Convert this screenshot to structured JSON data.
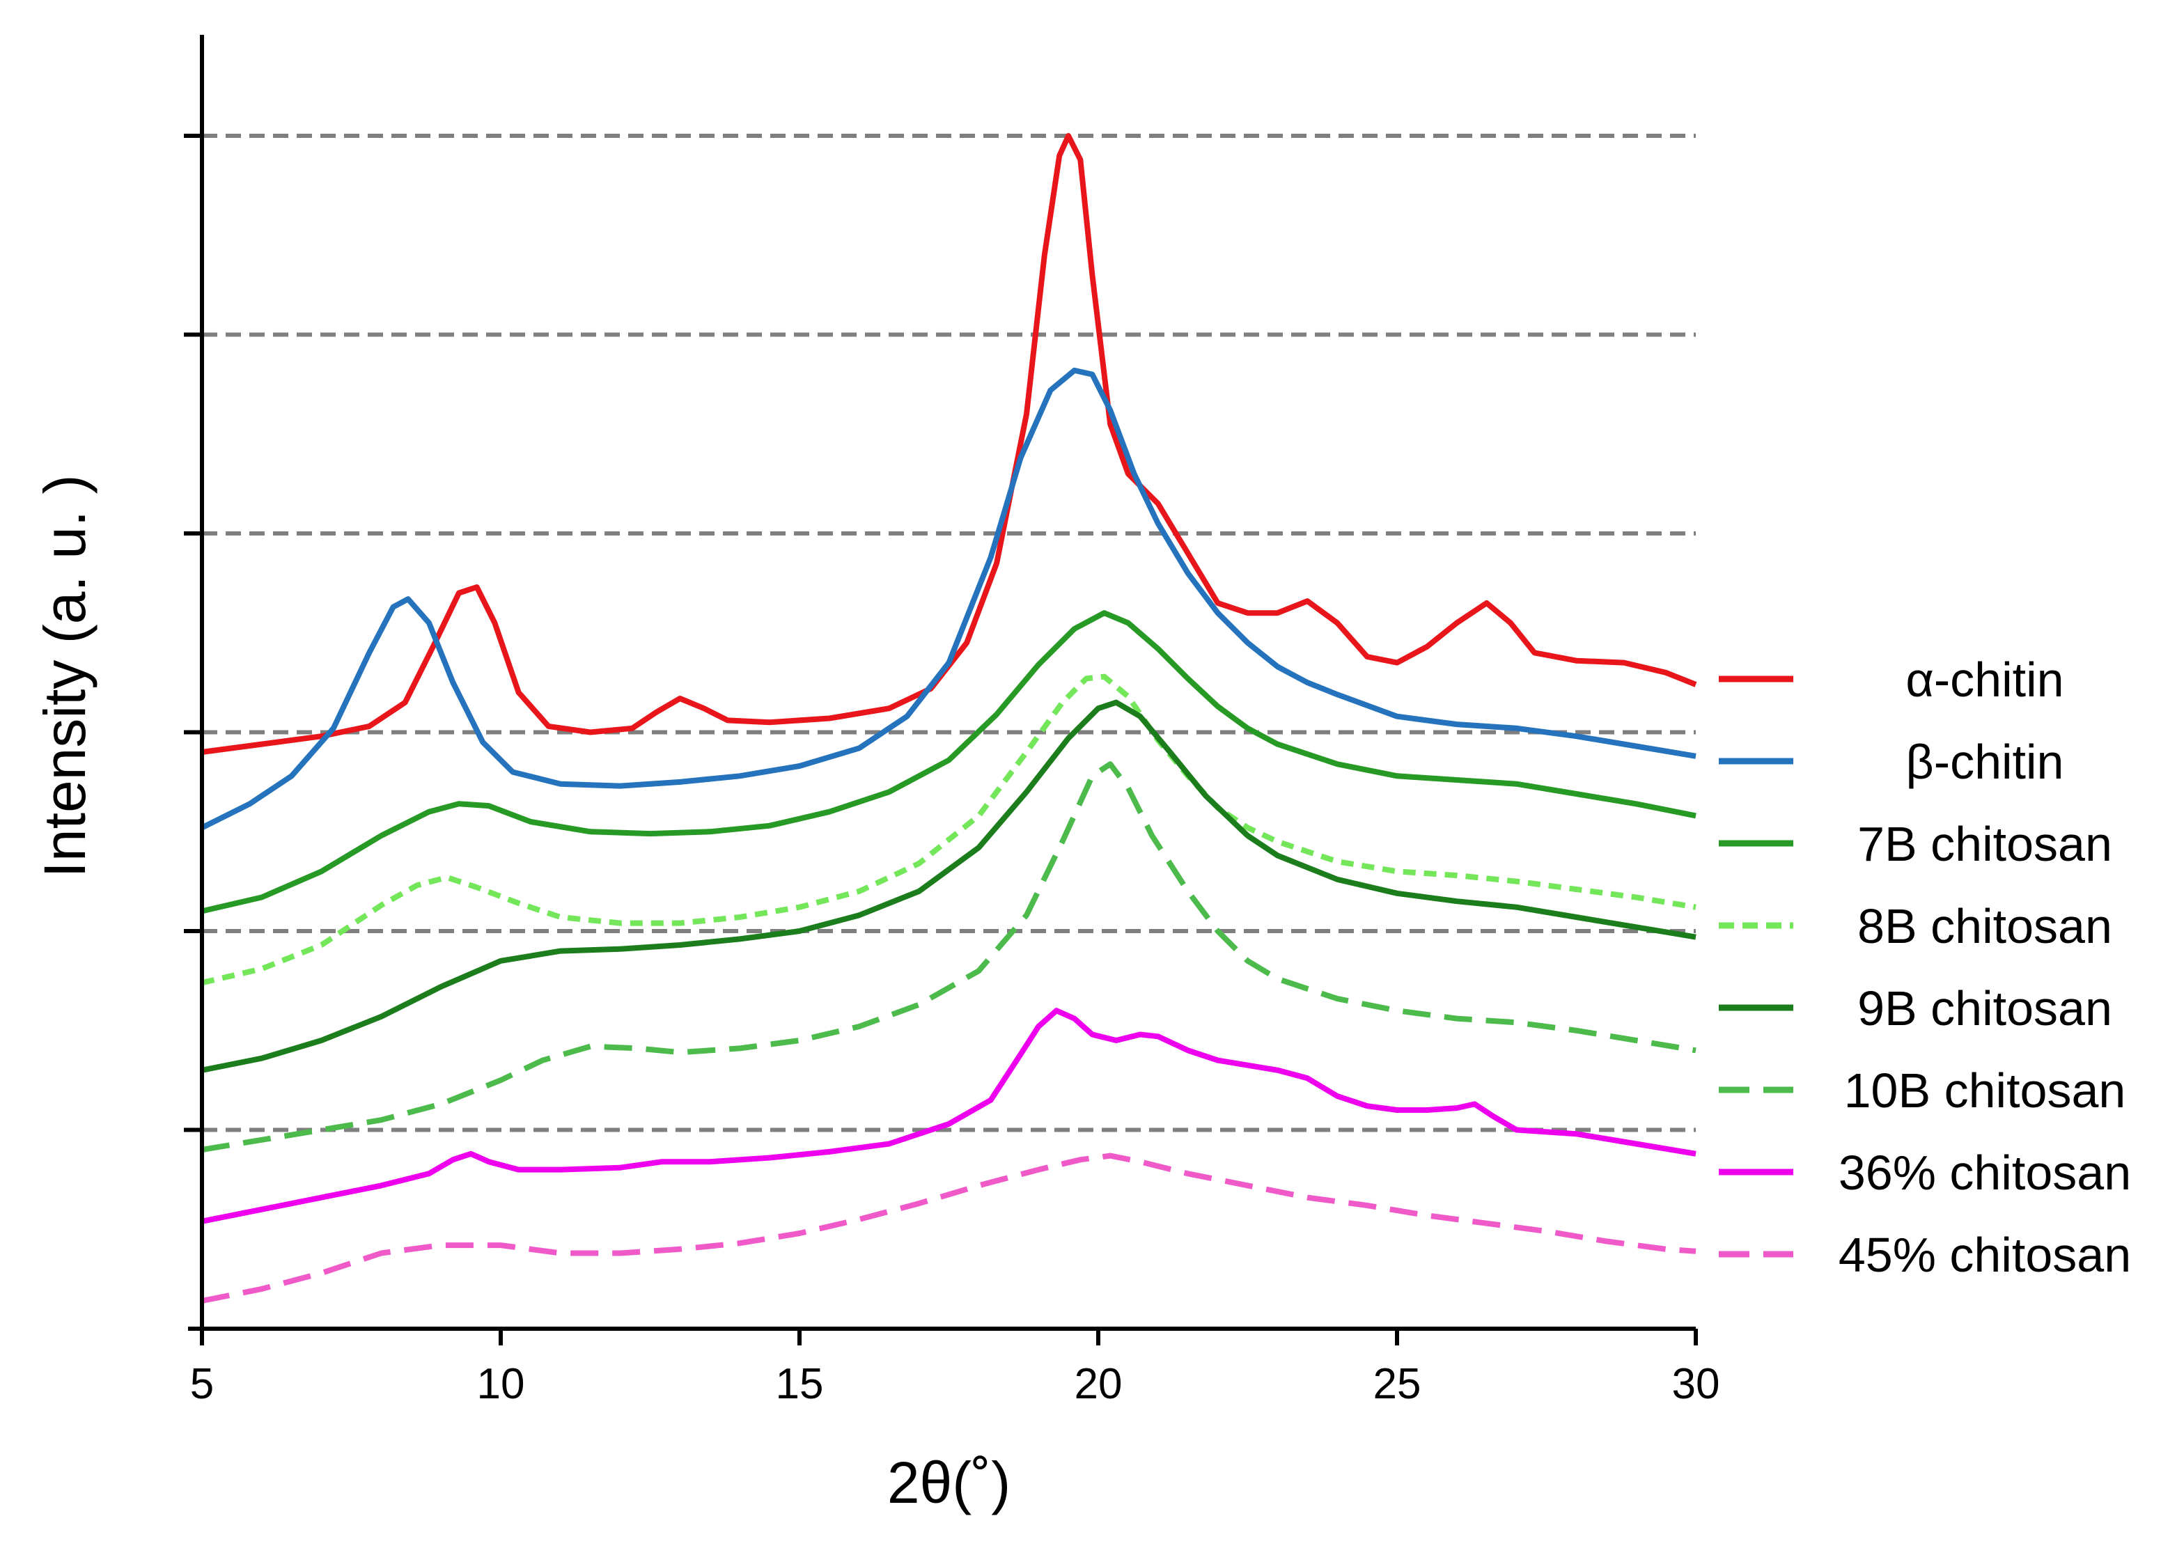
{
  "chart_data": {
    "type": "line",
    "title": "",
    "xlabel": "2θ(˚)",
    "ylabel": "Intensity (a. u. )",
    "xlim": [
      5,
      30
    ],
    "ylim": [
      0,
      6
    ],
    "x_ticks": [
      5,
      10,
      15,
      20,
      25,
      30
    ],
    "x_tick_labels": [
      "5",
      "10",
      "15",
      "20",
      "25",
      "30"
    ],
    "y_ticks": [
      0,
      1,
      2,
      3,
      4,
      5,
      6
    ],
    "y_tick_labels": [],
    "gridlines_y": [
      1,
      2,
      3,
      4,
      5,
      6
    ],
    "grid": "horizontal dashed",
    "legend_position": "right",
    "series": [
      {
        "name": "α-chitin",
        "color": "#e8161a",
        "dash": "solid",
        "points": [
          [
            5,
            2.9
          ],
          [
            6,
            2.94
          ],
          [
            7,
            2.98
          ],
          [
            7.8,
            3.03
          ],
          [
            8.4,
            3.15
          ],
          [
            8.9,
            3.45
          ],
          [
            9.3,
            3.7
          ],
          [
            9.6,
            3.73
          ],
          [
            9.9,
            3.55
          ],
          [
            10.3,
            3.2
          ],
          [
            10.8,
            3.03
          ],
          [
            11.5,
            3.0
          ],
          [
            12.2,
            3.02
          ],
          [
            12.6,
            3.1
          ],
          [
            13.0,
            3.17
          ],
          [
            13.4,
            3.12
          ],
          [
            13.8,
            3.06
          ],
          [
            14.5,
            3.05
          ],
          [
            15.5,
            3.07
          ],
          [
            16.5,
            3.12
          ],
          [
            17.2,
            3.22
          ],
          [
            17.8,
            3.45
          ],
          [
            18.3,
            3.85
          ],
          [
            18.8,
            4.6
          ],
          [
            19.1,
            5.4
          ],
          [
            19.35,
            5.9
          ],
          [
            19.5,
            6.0
          ],
          [
            19.7,
            5.88
          ],
          [
            19.9,
            5.3
          ],
          [
            20.2,
            4.55
          ],
          [
            20.5,
            4.3
          ],
          [
            21.0,
            4.15
          ],
          [
            21.5,
            3.9
          ],
          [
            22.0,
            3.65
          ],
          [
            22.5,
            3.6
          ],
          [
            23.0,
            3.6
          ],
          [
            23.5,
            3.66
          ],
          [
            24.0,
            3.55
          ],
          [
            24.5,
            3.38
          ],
          [
            25.0,
            3.35
          ],
          [
            25.5,
            3.43
          ],
          [
            26.0,
            3.55
          ],
          [
            26.5,
            3.65
          ],
          [
            26.9,
            3.55
          ],
          [
            27.3,
            3.4
          ],
          [
            28.0,
            3.36
          ],
          [
            28.8,
            3.35
          ],
          [
            29.5,
            3.3
          ],
          [
            30,
            3.24
          ]
        ]
      },
      {
        "name": "β-chitin",
        "color": "#2473bc",
        "dash": "solid",
        "points": [
          [
            5,
            2.52
          ],
          [
            5.8,
            2.64
          ],
          [
            6.5,
            2.78
          ],
          [
            7.2,
            3.02
          ],
          [
            7.8,
            3.4
          ],
          [
            8.2,
            3.63
          ],
          [
            8.45,
            3.67
          ],
          [
            8.8,
            3.55
          ],
          [
            9.2,
            3.25
          ],
          [
            9.7,
            2.95
          ],
          [
            10.2,
            2.8
          ],
          [
            11.0,
            2.74
          ],
          [
            12.0,
            2.73
          ],
          [
            13.0,
            2.75
          ],
          [
            14.0,
            2.78
          ],
          [
            15.0,
            2.83
          ],
          [
            16.0,
            2.92
          ],
          [
            16.8,
            3.08
          ],
          [
            17.5,
            3.35
          ],
          [
            18.2,
            3.88
          ],
          [
            18.7,
            4.38
          ],
          [
            19.2,
            4.72
          ],
          [
            19.6,
            4.82
          ],
          [
            19.9,
            4.8
          ],
          [
            20.2,
            4.62
          ],
          [
            20.6,
            4.3
          ],
          [
            21.0,
            4.05
          ],
          [
            21.5,
            3.8
          ],
          [
            22.0,
            3.6
          ],
          [
            22.5,
            3.45
          ],
          [
            23.0,
            3.33
          ],
          [
            23.5,
            3.25
          ],
          [
            24.0,
            3.19
          ],
          [
            25.0,
            3.08
          ],
          [
            26.0,
            3.04
          ],
          [
            27.0,
            3.02
          ],
          [
            28.0,
            2.98
          ],
          [
            29.0,
            2.93
          ],
          [
            30,
            2.88
          ]
        ]
      },
      {
        "name": "7B chitosan",
        "color": "#269a24",
        "dash": "solid",
        "points": [
          [
            5,
            2.1
          ],
          [
            6,
            2.17
          ],
          [
            7,
            2.3
          ],
          [
            8,
            2.48
          ],
          [
            8.8,
            2.6
          ],
          [
            9.3,
            2.64
          ],
          [
            9.8,
            2.63
          ],
          [
            10.5,
            2.55
          ],
          [
            11.5,
            2.5
          ],
          [
            12.5,
            2.49
          ],
          [
            13.5,
            2.5
          ],
          [
            14.5,
            2.53
          ],
          [
            15.5,
            2.6
          ],
          [
            16.5,
            2.7
          ],
          [
            17.5,
            2.86
          ],
          [
            18.3,
            3.09
          ],
          [
            19.0,
            3.34
          ],
          [
            19.6,
            3.52
          ],
          [
            20.1,
            3.6
          ],
          [
            20.5,
            3.55
          ],
          [
            21.0,
            3.42
          ],
          [
            21.5,
            3.27
          ],
          [
            22.0,
            3.13
          ],
          [
            22.5,
            3.02
          ],
          [
            23.0,
            2.94
          ],
          [
            24.0,
            2.84
          ],
          [
            25.0,
            2.78
          ],
          [
            26.0,
            2.76
          ],
          [
            27.0,
            2.74
          ],
          [
            28.0,
            2.69
          ],
          [
            29.0,
            2.64
          ],
          [
            30,
            2.58
          ]
        ]
      },
      {
        "name": "8B chitosan",
        "color": "#73e65a",
        "dash": "short",
        "points": [
          [
            5,
            1.74
          ],
          [
            6,
            1.81
          ],
          [
            7,
            1.93
          ],
          [
            8,
            2.13
          ],
          [
            8.6,
            2.23
          ],
          [
            9.1,
            2.27
          ],
          [
            9.6,
            2.22
          ],
          [
            10.3,
            2.14
          ],
          [
            11.0,
            2.07
          ],
          [
            12.0,
            2.04
          ],
          [
            13.0,
            2.04
          ],
          [
            14.0,
            2.07
          ],
          [
            15.0,
            2.12
          ],
          [
            16.0,
            2.2
          ],
          [
            17.0,
            2.34
          ],
          [
            18.0,
            2.58
          ],
          [
            18.8,
            2.9
          ],
          [
            19.4,
            3.15
          ],
          [
            19.8,
            3.27
          ],
          [
            20.1,
            3.28
          ],
          [
            20.5,
            3.18
          ],
          [
            21.0,
            2.96
          ],
          [
            21.5,
            2.78
          ],
          [
            22.0,
            2.62
          ],
          [
            22.5,
            2.52
          ],
          [
            23.0,
            2.45
          ],
          [
            24.0,
            2.35
          ],
          [
            25.0,
            2.3
          ],
          [
            26.0,
            2.28
          ],
          [
            27.0,
            2.25
          ],
          [
            28.0,
            2.21
          ],
          [
            29.0,
            2.17
          ],
          [
            30,
            2.12
          ]
        ]
      },
      {
        "name": "9B chitosan",
        "color": "#1c7d1c",
        "dash": "solid",
        "points": [
          [
            5,
            1.3
          ],
          [
            6,
            1.36
          ],
          [
            7,
            1.45
          ],
          [
            8,
            1.57
          ],
          [
            9,
            1.72
          ],
          [
            10,
            1.85
          ],
          [
            11,
            1.9
          ],
          [
            12,
            1.91
          ],
          [
            13,
            1.93
          ],
          [
            14,
            1.96
          ],
          [
            15,
            2.0
          ],
          [
            16,
            2.08
          ],
          [
            17,
            2.2
          ],
          [
            18,
            2.42
          ],
          [
            18.8,
            2.7
          ],
          [
            19.5,
            2.97
          ],
          [
            20.0,
            3.12
          ],
          [
            20.3,
            3.15
          ],
          [
            20.7,
            3.08
          ],
          [
            21.2,
            2.9
          ],
          [
            21.8,
            2.68
          ],
          [
            22.5,
            2.48
          ],
          [
            23.0,
            2.38
          ],
          [
            24.0,
            2.26
          ],
          [
            25.0,
            2.19
          ],
          [
            26.0,
            2.15
          ],
          [
            27.0,
            2.12
          ],
          [
            28.0,
            2.07
          ],
          [
            29.0,
            2.02
          ],
          [
            30,
            1.97
          ]
        ]
      },
      {
        "name": "10B chitosan",
        "color": "#4cbb4c",
        "dash": "long",
        "points": [
          [
            5,
            0.9
          ],
          [
            6,
            0.95
          ],
          [
            7,
            1.0
          ],
          [
            8,
            1.05
          ],
          [
            9,
            1.13
          ],
          [
            10,
            1.25
          ],
          [
            10.7,
            1.35
          ],
          [
            11.5,
            1.42
          ],
          [
            12.3,
            1.41
          ],
          [
            13,
            1.39
          ],
          [
            14,
            1.41
          ],
          [
            15,
            1.45
          ],
          [
            16,
            1.52
          ],
          [
            17,
            1.63
          ],
          [
            18,
            1.8
          ],
          [
            18.8,
            2.08
          ],
          [
            19.4,
            2.45
          ],
          [
            19.9,
            2.78
          ],
          [
            20.2,
            2.84
          ],
          [
            20.5,
            2.72
          ],
          [
            20.9,
            2.48
          ],
          [
            21.5,
            2.2
          ],
          [
            22.0,
            2.0
          ],
          [
            22.5,
            1.85
          ],
          [
            23.0,
            1.76
          ],
          [
            24.0,
            1.66
          ],
          [
            25.0,
            1.6
          ],
          [
            26.0,
            1.56
          ],
          [
            27.0,
            1.54
          ],
          [
            28.0,
            1.5
          ],
          [
            29.0,
            1.45
          ],
          [
            30,
            1.4
          ]
        ]
      },
      {
        "name": "36% chitosan",
        "color": "#ee00ee",
        "dash": "solid",
        "points": [
          [
            5,
            0.54
          ],
          [
            6,
            0.6
          ],
          [
            7,
            0.66
          ],
          [
            8,
            0.72
          ],
          [
            8.8,
            0.78
          ],
          [
            9.2,
            0.85
          ],
          [
            9.5,
            0.88
          ],
          [
            9.8,
            0.84
          ],
          [
            10.3,
            0.8
          ],
          [
            11,
            0.8
          ],
          [
            12,
            0.81
          ],
          [
            12.7,
            0.84
          ],
          [
            13.5,
            0.84
          ],
          [
            14.5,
            0.86
          ],
          [
            15.5,
            0.89
          ],
          [
            16.5,
            0.93
          ],
          [
            17.5,
            1.03
          ],
          [
            18.2,
            1.15
          ],
          [
            18.7,
            1.38
          ],
          [
            19.0,
            1.52
          ],
          [
            19.3,
            1.6
          ],
          [
            19.6,
            1.56
          ],
          [
            19.9,
            1.48
          ],
          [
            20.3,
            1.45
          ],
          [
            20.7,
            1.48
          ],
          [
            21.0,
            1.47
          ],
          [
            21.5,
            1.4
          ],
          [
            22.0,
            1.35
          ],
          [
            23.0,
            1.3
          ],
          [
            23.5,
            1.26
          ],
          [
            24.0,
            1.17
          ],
          [
            24.5,
            1.12
          ],
          [
            25.0,
            1.1
          ],
          [
            25.5,
            1.1
          ],
          [
            26.0,
            1.11
          ],
          [
            26.3,
            1.13
          ],
          [
            26.6,
            1.07
          ],
          [
            27.0,
            1.0
          ],
          [
            28.0,
            0.98
          ],
          [
            29.0,
            0.93
          ],
          [
            30,
            0.88
          ]
        ]
      },
      {
        "name": "45% chitosan",
        "color": "#f05ac8",
        "dash": "long",
        "points": [
          [
            5,
            0.14
          ],
          [
            6,
            0.2
          ],
          [
            7,
            0.28
          ],
          [
            8,
            0.38
          ],
          [
            9,
            0.42
          ],
          [
            10,
            0.42
          ],
          [
            11,
            0.38
          ],
          [
            12,
            0.38
          ],
          [
            13,
            0.4
          ],
          [
            14,
            0.43
          ],
          [
            15,
            0.48
          ],
          [
            16,
            0.55
          ],
          [
            17,
            0.63
          ],
          [
            18,
            0.72
          ],
          [
            19,
            0.8
          ],
          [
            19.7,
            0.85
          ],
          [
            20.2,
            0.87
          ],
          [
            20.7,
            0.84
          ],
          [
            21.5,
            0.78
          ],
          [
            22.5,
            0.72
          ],
          [
            23.5,
            0.66
          ],
          [
            24.5,
            0.62
          ],
          [
            25.5,
            0.57
          ],
          [
            26.5,
            0.53
          ],
          [
            27.5,
            0.49
          ],
          [
            28.5,
            0.44
          ],
          [
            29.5,
            0.4
          ],
          [
            30,
            0.39
          ]
        ]
      }
    ]
  }
}
